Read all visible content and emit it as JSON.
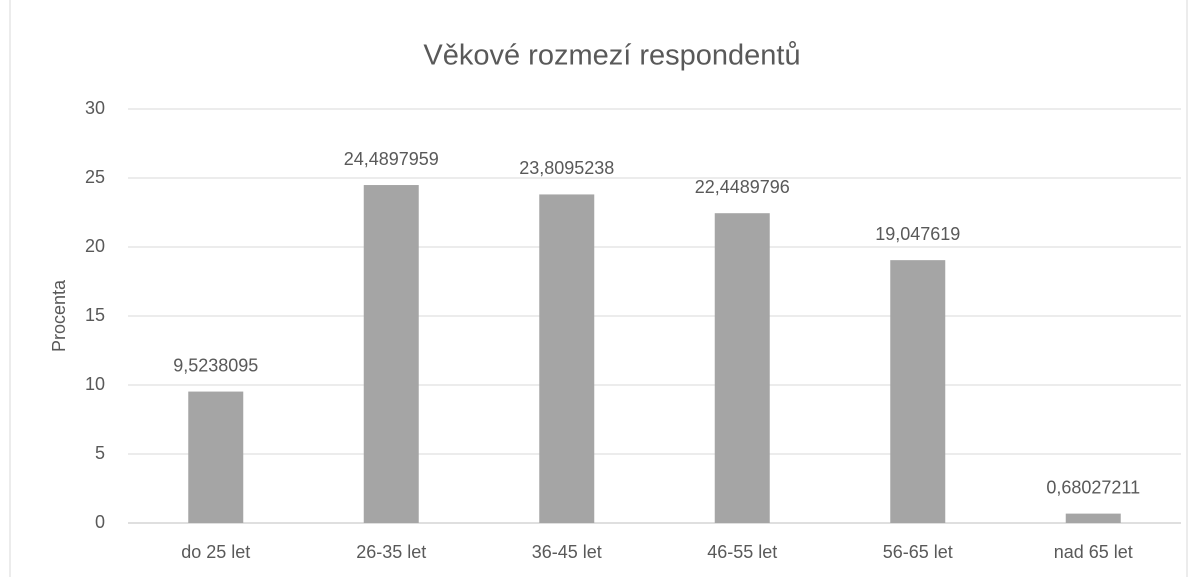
{
  "chart_data": {
    "type": "bar",
    "title": "Věkové rozmezí respondentů",
    "y_label": "Procenta",
    "categories": [
      "do 25 let",
      "26-35 let",
      "36-45 let",
      "46-55 let",
      "56-65 let",
      "nad 65 let"
    ],
    "values": [
      9.5238095,
      24.4897959,
      23.8095238,
      22.4489796,
      19.047619,
      0.68027211
    ],
    "value_labels": [
      "9,5238095",
      "24,4897959",
      "23,8095238",
      "22,4489796",
      "19,047619",
      "0,68027211"
    ],
    "color": "#a5a5a5",
    "ylim": [
      0,
      30
    ],
    "yticks": [
      0,
      5,
      10,
      15,
      20,
      25,
      30
    ],
    "grid": true
  }
}
